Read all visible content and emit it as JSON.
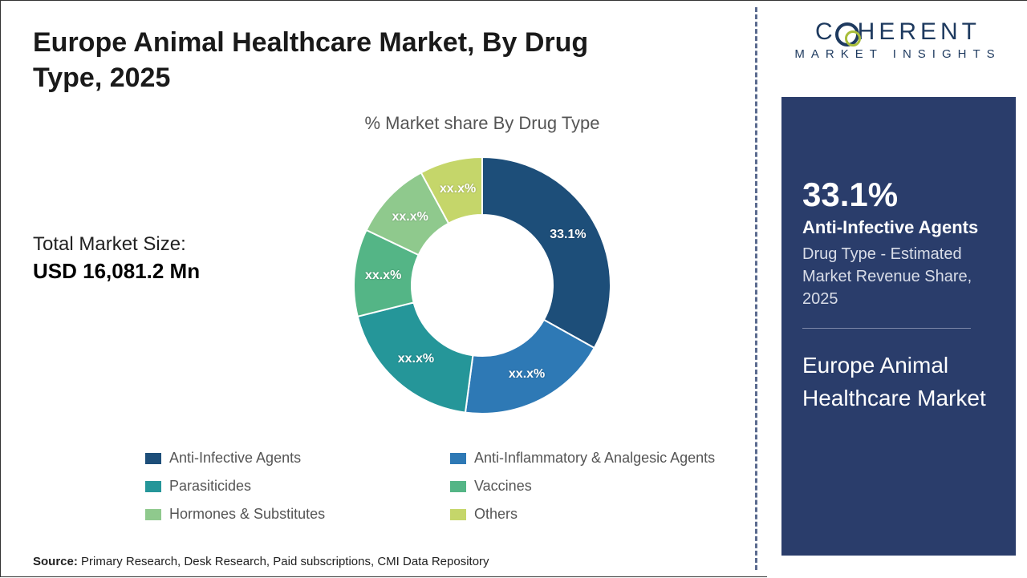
{
  "title": "Europe Animal Healthcare Market, By Drug Type, 2025",
  "chart_subtitle": "% Market share By Drug Type",
  "market_size": {
    "label": "Total Market Size:",
    "value": "USD 16,081.2 Mn"
  },
  "donut": {
    "type": "donut",
    "inner_radius_pct": 55,
    "background_color": "#ffffff",
    "slices": [
      {
        "name": "Anti-Infective Agents",
        "value": 33.1,
        "label": "33.1%",
        "color": "#1d4e79"
      },
      {
        "name": "Anti-Inflammatory & Analgesic Agents",
        "value": 19.0,
        "label": "xx.x%",
        "color": "#2e79b5"
      },
      {
        "name": "Parasiticides",
        "value": 19.0,
        "label": "xx.x%",
        "color": "#259699"
      },
      {
        "name": "Vaccines",
        "value": 11.0,
        "label": "xx.x%",
        "color": "#54b586"
      },
      {
        "name": "Hormones & Substitutes",
        "value": 10.0,
        "label": "xx.x%",
        "color": "#8fc98d"
      },
      {
        "name": "Others",
        "value": 7.9,
        "label": "xx.x%",
        "color": "#c5d66a"
      }
    ]
  },
  "legend_items": [
    {
      "label": "Anti-Infective Agents",
      "color": "#1d4e79"
    },
    {
      "label": "Anti-Inflammatory & Analgesic Agents",
      "color": "#2e79b5"
    },
    {
      "label": "Parasiticides",
      "color": "#259699"
    },
    {
      "label": "Vaccines",
      "color": "#54b586"
    },
    {
      "label": "Hormones & Substitutes",
      "color": "#8fc98d"
    },
    {
      "label": "Others",
      "color": "#c5d66a"
    }
  ],
  "source": {
    "prefix": "Source:",
    "text": " Primary Research, Desk Research, Paid subscriptions, CMI Data Repository"
  },
  "logo": {
    "main_left": "C",
    "main_right": "HERENT",
    "sub": "MARKET INSIGHTS"
  },
  "side": {
    "pct": "33.1%",
    "category": "Anti-Infective Agents",
    "desc": "Drug Type - Estimated Market Revenue Share, 2025",
    "market_name": "Europe Animal Healthcare Market",
    "bg_color": "#2a3d6b",
    "text_color": "#ffffff"
  }
}
